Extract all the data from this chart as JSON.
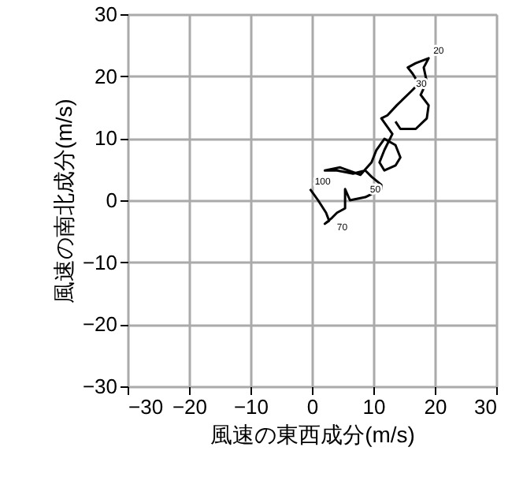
{
  "chart_data": {
    "type": "line",
    "xlabel": "風速の東西成分(m/s)",
    "ylabel": "風速の南北成分(m/s)",
    "x": [
      -0.3,
      1.0,
      2.3,
      2.8,
      2.1,
      3.3,
      4.1,
      5.4,
      5.4,
      6.2,
      8.7,
      11.3,
      11.3,
      9.7,
      8.7,
      6.7,
      4.1,
      2.1,
      4.6,
      7.9,
      9.7,
      10.5,
      11.8,
      13.6,
      14.4,
      13.6,
      11.8,
      11.0,
      11.8,
      13.1,
      11.3,
      12.3,
      13.8,
      16.2,
      17.4,
      16.4,
      15.6,
      16.9,
      19.0,
      18.2,
      18.7,
      17.7,
      19.0,
      18.7,
      16.9,
      14.4,
      13.6
    ],
    "series": [
      {
        "color": "#000000",
        "values": [
          1.8,
          0,
          -2.0,
          -3.3,
          -3.8,
          -2.8,
          -2.0,
          -1.3,
          1.8,
          0,
          0.5,
          1.8,
          2.5,
          3.8,
          4.8,
          4.3,
          4.8,
          4.8,
          5.3,
          4.1,
          6.1,
          8.1,
          9.9,
          8.9,
          6.9,
          5.6,
          4.8,
          6.1,
          8.1,
          10.7,
          13.2,
          13.7,
          15.3,
          17.6,
          18.8,
          20.4,
          21.4,
          22.1,
          22.9,
          21.4,
          19.1,
          17.0,
          15.3,
          13.2,
          11.5,
          11.5,
          12.7
        ]
      }
    ],
    "annotations": [
      {
        "text": "100",
        "x": -0.3,
        "y": 1.8
      },
      {
        "text": "70",
        "x": 3.3,
        "y": -2.8
      },
      {
        "text": "50",
        "x": 8.7,
        "y": 0.5
      },
      {
        "text": "30",
        "x": 16.2,
        "y": 17.6
      },
      {
        "text": "20",
        "x": 19.0,
        "y": 22.9
      }
    ],
    "xlim": [
      -30,
      30
    ],
    "ylim": [
      -30,
      30
    ],
    "xticks": [
      -30,
      -20,
      -10,
      0,
      10,
      20,
      30
    ],
    "yticks": [
      -30,
      -20,
      -10,
      0,
      10,
      20,
      30
    ],
    "grid": true,
    "marker": "none",
    "line_style": "solid"
  }
}
